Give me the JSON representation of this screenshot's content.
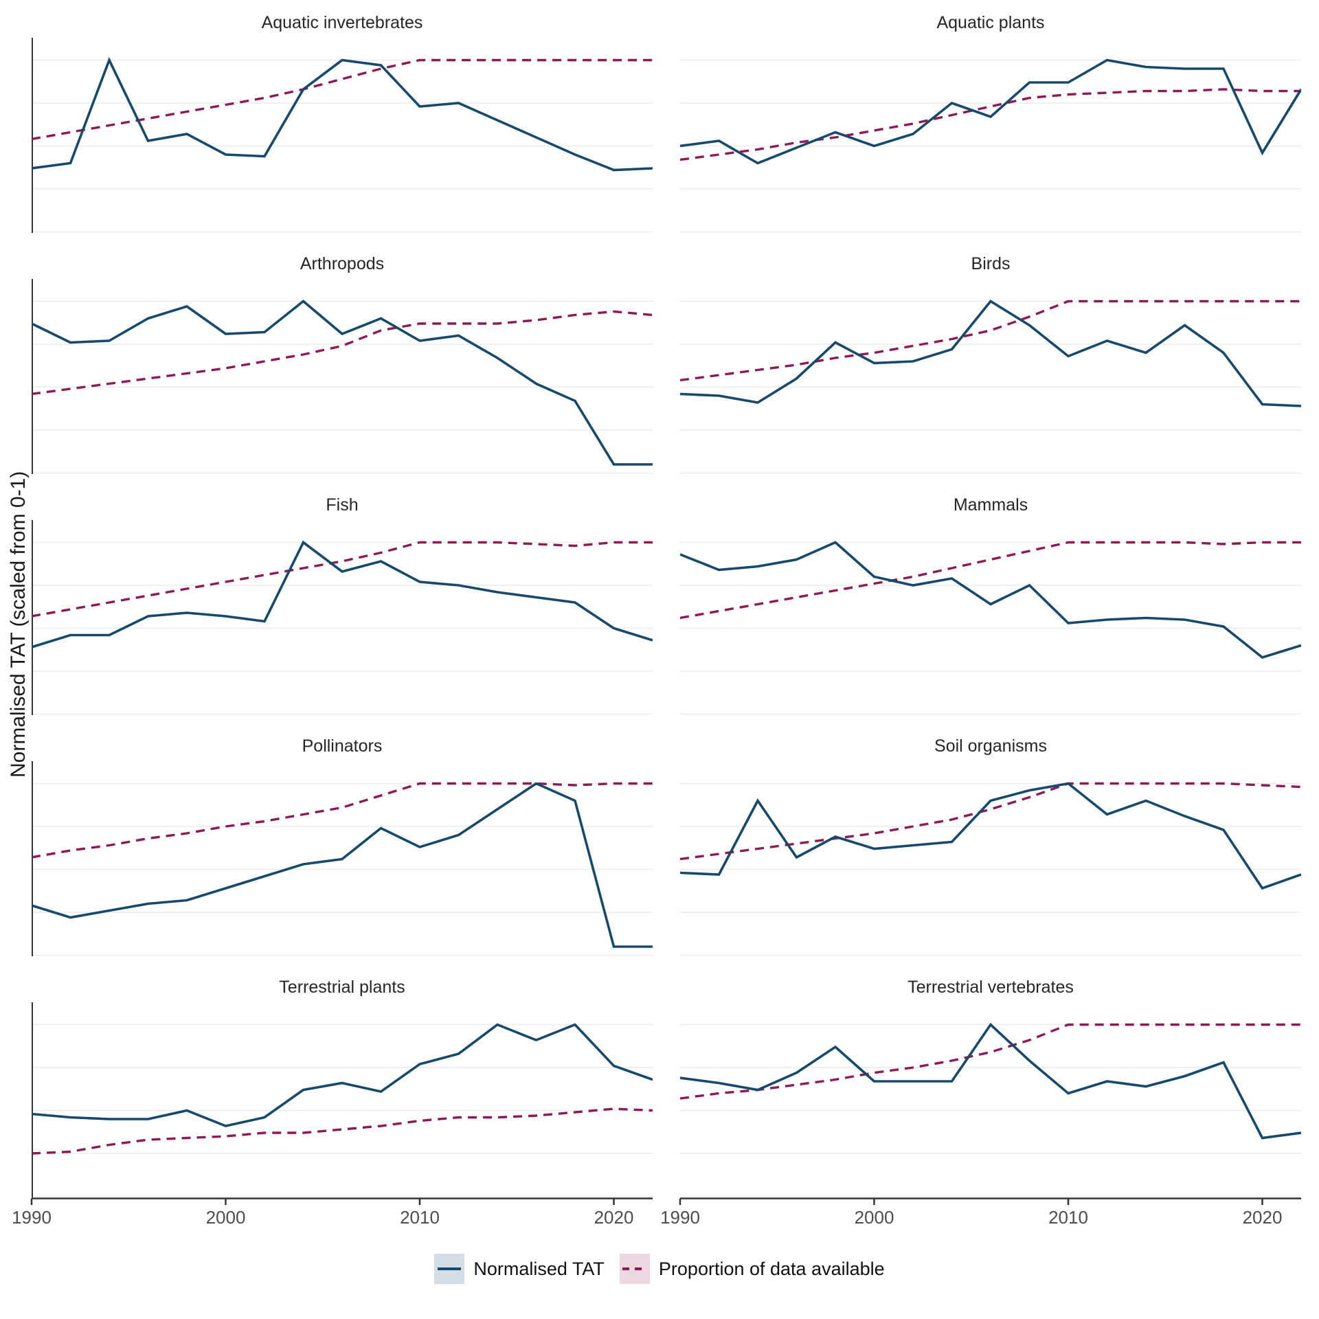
{
  "chart_data": {
    "type": "line",
    "layout": "facet-grid-5x2",
    "ylabel": "Normalised TAT (scaled from 0-1)",
    "xlabel": "",
    "x": [
      1990,
      1992,
      1994,
      1996,
      1998,
      2000,
      2002,
      2004,
      2006,
      2008,
      2010,
      2012,
      2014,
      2016,
      2018,
      2020,
      2022
    ],
    "x_ticks": [
      1990,
      2000,
      2010,
      2020
    ],
    "x_tick_labels": [
      "1990",
      "2000",
      "2010",
      "2020"
    ],
    "xlim": [
      1990,
      2022
    ],
    "ylim": [
      0,
      1
    ],
    "y_gridlines": [
      0,
      0.25,
      0.5,
      0.75,
      1.0
    ],
    "grid": "horizontal-only",
    "legend_position": "bottom",
    "colors": {
      "normalised_tat_line": "#17496B",
      "proportion_line": "#8E1A53",
      "tat_swatch_fill": "#D5DEE7",
      "proportion_swatch_fill": "#EDD7E0",
      "gridline": "#ececec",
      "axis_line": "#333333",
      "tick_label": "#4d4d4d",
      "title_text": "#262626"
    },
    "series": [
      {
        "name": "Normalised TAT",
        "style": "solid"
      },
      {
        "name": "Proportion of data available",
        "style": "dashed"
      }
    ],
    "panels": [
      {
        "title": "Aquatic invertebrates",
        "normalised_tat": [
          0.37,
          0.4,
          1.0,
          0.53,
          0.57,
          0.45,
          0.44,
          0.83,
          1.0,
          0.97,
          0.73,
          0.75,
          0.65,
          0.55,
          0.45,
          0.36,
          0.37
        ],
        "proportion_of_data_available": [
          0.54,
          0.58,
          0.62,
          0.66,
          0.7,
          0.74,
          0.78,
          0.83,
          0.89,
          0.95,
          1.0,
          1.0,
          1.0,
          1.0,
          1.0,
          1.0,
          1.0
        ]
      },
      {
        "title": "Aquatic plants",
        "normalised_tat": [
          0.5,
          0.53,
          0.4,
          0.49,
          0.58,
          0.5,
          0.57,
          0.75,
          0.67,
          0.87,
          0.87,
          1.0,
          0.96,
          0.95,
          0.95,
          0.46,
          0.83
        ],
        "proportion_of_data_available": [
          0.42,
          0.45,
          0.48,
          0.52,
          0.55,
          0.59,
          0.63,
          0.68,
          0.73,
          0.78,
          0.8,
          0.81,
          0.82,
          0.82,
          0.83,
          0.82,
          0.82
        ]
      },
      {
        "title": "Arthropods",
        "normalised_tat": [
          0.87,
          0.76,
          0.77,
          0.9,
          0.97,
          0.81,
          0.82,
          1.0,
          0.81,
          0.9,
          0.77,
          0.8,
          0.67,
          0.52,
          0.42,
          0.05,
          0.05
        ],
        "proportion_of_data_available": [
          0.46,
          0.49,
          0.52,
          0.55,
          0.58,
          0.61,
          0.65,
          0.69,
          0.74,
          0.83,
          0.87,
          0.87,
          0.87,
          0.89,
          0.92,
          0.94,
          0.92
        ]
      },
      {
        "title": "Birds",
        "normalised_tat": [
          0.46,
          0.45,
          0.41,
          0.55,
          0.76,
          0.64,
          0.65,
          0.72,
          1.0,
          0.86,
          0.68,
          0.77,
          0.7,
          0.86,
          0.7,
          0.4,
          0.39
        ],
        "proportion_of_data_available": [
          0.54,
          0.57,
          0.6,
          0.63,
          0.67,
          0.7,
          0.74,
          0.78,
          0.83,
          0.91,
          1.0,
          1.0,
          1.0,
          1.0,
          1.0,
          1.0,
          1.0
        ]
      },
      {
        "title": "Fish",
        "normalised_tat": [
          0.39,
          0.46,
          0.46,
          0.57,
          0.59,
          0.57,
          0.54,
          1.0,
          0.83,
          0.89,
          0.77,
          0.75,
          0.71,
          0.68,
          0.65,
          0.5,
          0.43
        ],
        "proportion_of_data_available": [
          0.57,
          0.61,
          0.65,
          0.69,
          0.73,
          0.77,
          0.81,
          0.85,
          0.89,
          0.94,
          1.0,
          1.0,
          1.0,
          0.99,
          0.98,
          1.0,
          1.0
        ]
      },
      {
        "title": "Mammals",
        "normalised_tat": [
          0.93,
          0.84,
          0.86,
          0.9,
          1.0,
          0.8,
          0.75,
          0.79,
          0.64,
          0.75,
          0.53,
          0.55,
          0.56,
          0.55,
          0.51,
          0.33,
          0.4
        ],
        "proportion_of_data_available": [
          0.56,
          0.6,
          0.64,
          0.68,
          0.72,
          0.76,
          0.8,
          0.85,
          0.9,
          0.95,
          1.0,
          1.0,
          1.0,
          1.0,
          0.99,
          1.0,
          1.0
        ]
      },
      {
        "title": "Pollinators",
        "normalised_tat": [
          0.29,
          0.22,
          0.26,
          0.3,
          0.32,
          0.39,
          0.46,
          0.53,
          0.56,
          0.74,
          0.63,
          0.7,
          0.85,
          1.0,
          0.9,
          0.05,
          0.05
        ],
        "proportion_of_data_available": [
          0.57,
          0.61,
          0.64,
          0.68,
          0.71,
          0.75,
          0.78,
          0.82,
          0.86,
          0.93,
          1.0,
          1.0,
          1.0,
          1.0,
          0.99,
          1.0,
          1.0
        ]
      },
      {
        "title": "Soil organisms",
        "normalised_tat": [
          0.48,
          0.47,
          0.9,
          0.57,
          0.69,
          0.62,
          0.64,
          0.66,
          0.9,
          0.96,
          1.0,
          0.82,
          0.9,
          0.81,
          0.73,
          0.39,
          0.47
        ],
        "proportion_of_data_available": [
          0.56,
          0.59,
          0.62,
          0.65,
          0.68,
          0.71,
          0.75,
          0.79,
          0.85,
          0.92,
          1.0,
          1.0,
          1.0,
          1.0,
          1.0,
          0.99,
          0.98
        ]
      },
      {
        "title": "Terrestrial plants",
        "normalised_tat": [
          0.48,
          0.46,
          0.45,
          0.45,
          0.5,
          0.41,
          0.46,
          0.62,
          0.66,
          0.61,
          0.77,
          0.83,
          1.0,
          0.91,
          1.0,
          0.76,
          0.68
        ],
        "proportion_of_data_available": [
          0.25,
          0.26,
          0.3,
          0.33,
          0.34,
          0.35,
          0.37,
          0.37,
          0.39,
          0.41,
          0.44,
          0.46,
          0.46,
          0.47,
          0.49,
          0.51,
          0.5
        ]
      },
      {
        "title": "Terrestrial vertebrates",
        "normalised_tat": [
          0.69,
          0.66,
          0.62,
          0.72,
          0.87,
          0.67,
          0.67,
          0.67,
          1.0,
          0.79,
          0.6,
          0.67,
          0.64,
          0.7,
          0.78,
          0.34,
          0.37
        ],
        "proportion_of_data_available": [
          0.57,
          0.6,
          0.62,
          0.65,
          0.68,
          0.72,
          0.75,
          0.79,
          0.84,
          0.91,
          1.0,
          1.0,
          1.0,
          1.0,
          1.0,
          1.0,
          1.0
        ]
      }
    ]
  },
  "legend": {
    "items": [
      {
        "label": "Normalised TAT"
      },
      {
        "label": "Proportion of data available"
      }
    ]
  }
}
